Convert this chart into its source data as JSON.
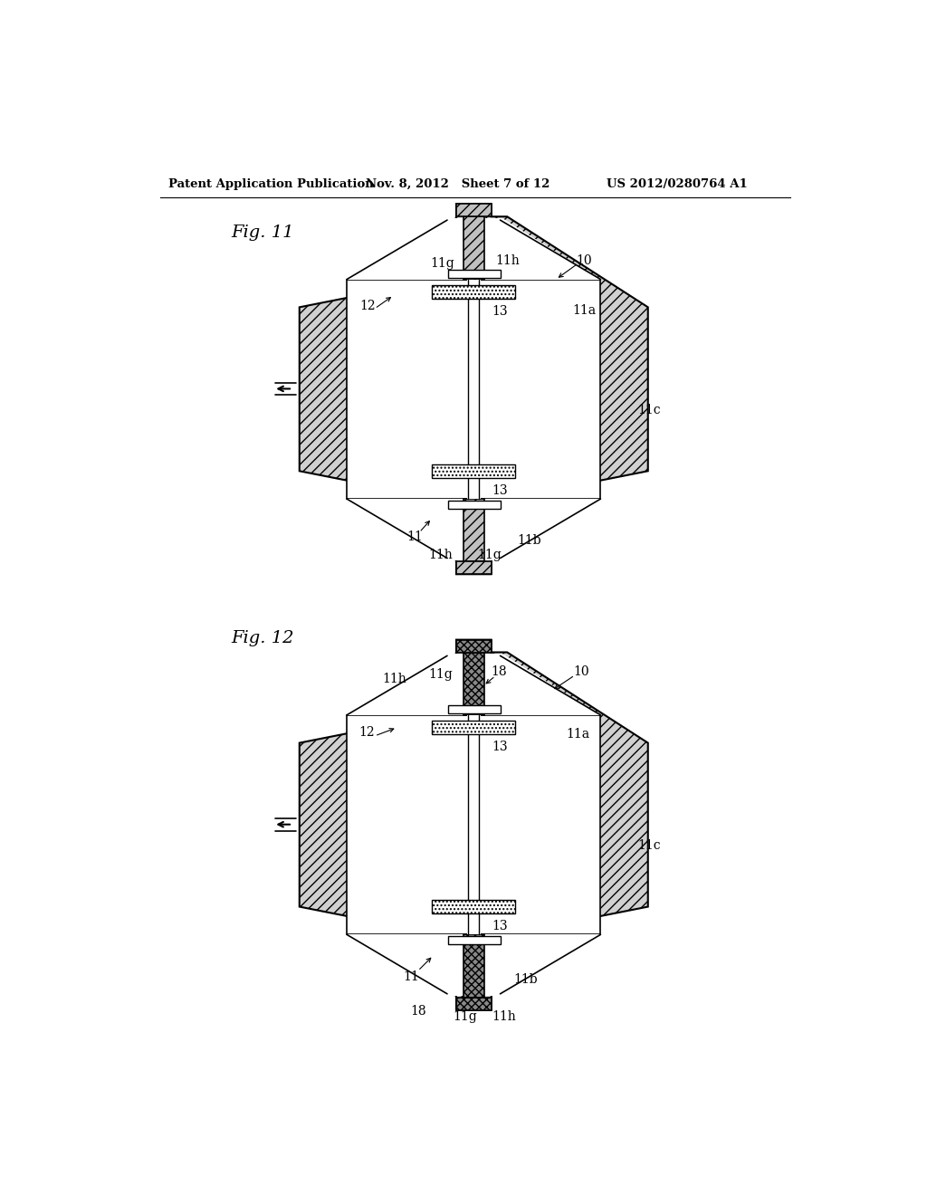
{
  "background_color": "#ffffff",
  "header_left": "Patent Application Publication",
  "header_mid": "Nov. 8, 2012   Sheet 7 of 12",
  "header_right": "US 2012/0280764 A1",
  "fig11_label": "Fig. 11",
  "fig12_label": "Fig. 12"
}
